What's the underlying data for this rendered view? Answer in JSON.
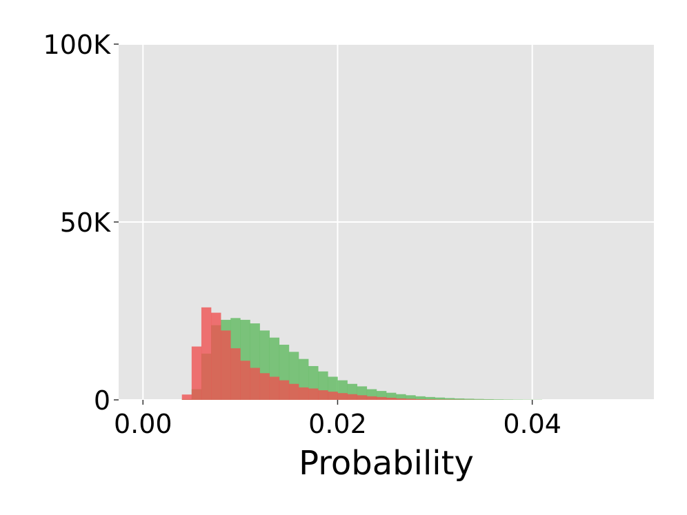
{
  "chart_data": {
    "type": "histogram",
    "xlabel": "Probability",
    "ylabel": "",
    "xlim": [
      -0.0025,
      0.0525
    ],
    "ylim": [
      0,
      100000
    ],
    "xticks": [
      0.0,
      0.02,
      0.04
    ],
    "xtick_labels": [
      "0.00",
      "0.02",
      "0.04"
    ],
    "yticks": [
      0,
      50000,
      100000
    ],
    "ytick_labels": [
      "0",
      "50K",
      "100K"
    ],
    "grid": true,
    "background": "#e5e5e5",
    "grid_color": "#ffffff",
    "bin_edges_start": 0.004,
    "bin_width": 0.001,
    "series": [
      {
        "color": "#5cb85c",
        "opacity": 0.78,
        "values": [
          200,
          3000,
          13000,
          21000,
          22500,
          23000,
          22500,
          21500,
          19500,
          17500,
          15500,
          13500,
          11500,
          9500,
          8000,
          6500,
          5500,
          4500,
          3800,
          3000,
          2500,
          2000,
          1600,
          1300,
          1000,
          800,
          650,
          500,
          400,
          320,
          250,
          200,
          160,
          130,
          100,
          80,
          60
        ]
      },
      {
        "color": "#f05050",
        "opacity": 0.78,
        "values": [
          1500,
          15000,
          26000,
          24500,
          19500,
          14500,
          11000,
          9000,
          7500,
          6500,
          5500,
          4500,
          3500,
          3200,
          2700,
          2300,
          1900,
          1600,
          1300,
          1000,
          800,
          600,
          400,
          300,
          200,
          150,
          100,
          80,
          60,
          40,
          30,
          20,
          10,
          10,
          5,
          5,
          5
        ]
      }
    ]
  }
}
